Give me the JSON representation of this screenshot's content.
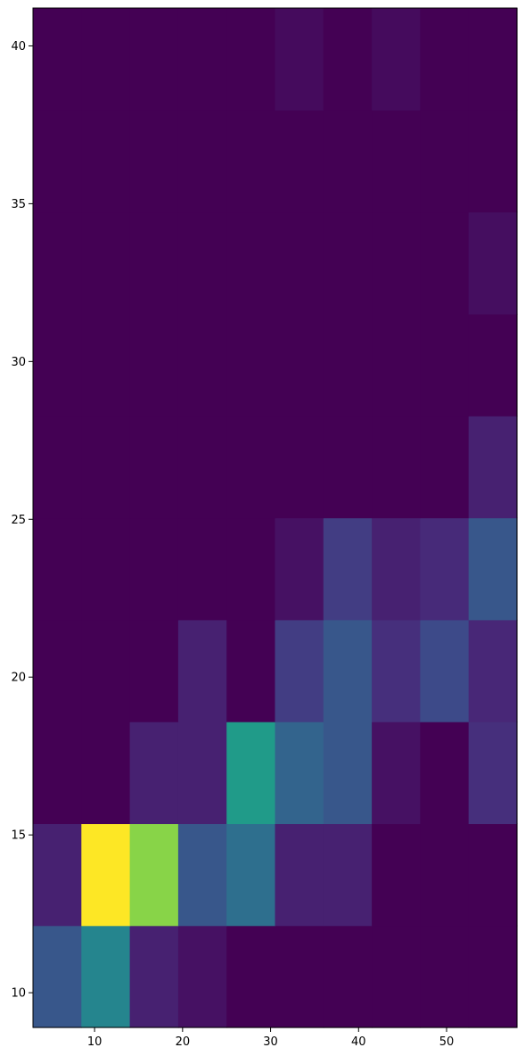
{
  "chart_data": {
    "type": "heatmap",
    "title": "",
    "xlabel": "",
    "ylabel": "",
    "colormap": "viridis",
    "grid": false,
    "legend": "none",
    "xlim": [
      3.0,
      58.0
    ],
    "ylim": [
      8.9,
      41.2
    ],
    "x_ticks": [
      10,
      20,
      30,
      40,
      50
    ],
    "y_ticks": [
      10,
      15,
      20,
      25,
      30,
      35,
      40
    ],
    "x_edges": [
      3.0,
      8.5,
      14.0,
      19.5,
      25.0,
      30.5,
      36.0,
      41.5,
      47.0,
      52.5,
      58.0
    ],
    "y_edges": [
      8.9,
      12.13,
      15.36,
      18.59,
      21.82,
      25.05,
      28.28,
      31.51,
      34.74,
      37.97,
      41.2
    ],
    "max_count": 11,
    "counts": [
      [
        3,
        5,
        1,
        0.5,
        0,
        0,
        0,
        0,
        0,
        0
      ],
      [
        1,
        11,
        9,
        3,
        4,
        1,
        1,
        0,
        0,
        0
      ],
      [
        0,
        0,
        1,
        1,
        6,
        3.5,
        3,
        0.5,
        0,
        1.5
      ],
      [
        0,
        0,
        0,
        1,
        0,
        2,
        3,
        1.5,
        2.5,
        1.2
      ],
      [
        0,
        0,
        0,
        0,
        0,
        0.5,
        2,
        1,
        1.3,
        3
      ],
      [
        0,
        0,
        0,
        0,
        0,
        0,
        0,
        0,
        0,
        1
      ],
      [
        0,
        0,
        0,
        0,
        0,
        0,
        0,
        0,
        0,
        0
      ],
      [
        0,
        0,
        0,
        0,
        0,
        0,
        0,
        0,
        0,
        0.4
      ],
      [
        0,
        0,
        0,
        0,
        0,
        0,
        0,
        0,
        0,
        0
      ],
      [
        0,
        0,
        0,
        0,
        0,
        0.3,
        0,
        0.3,
        0,
        0
      ]
    ],
    "palette": {
      "stops": [
        "#440154",
        "#482878",
        "#3e4989",
        "#31688e",
        "#26828e",
        "#1f9e89",
        "#35b779",
        "#6ece58",
        "#b5de2b",
        "#fde725"
      ]
    }
  }
}
